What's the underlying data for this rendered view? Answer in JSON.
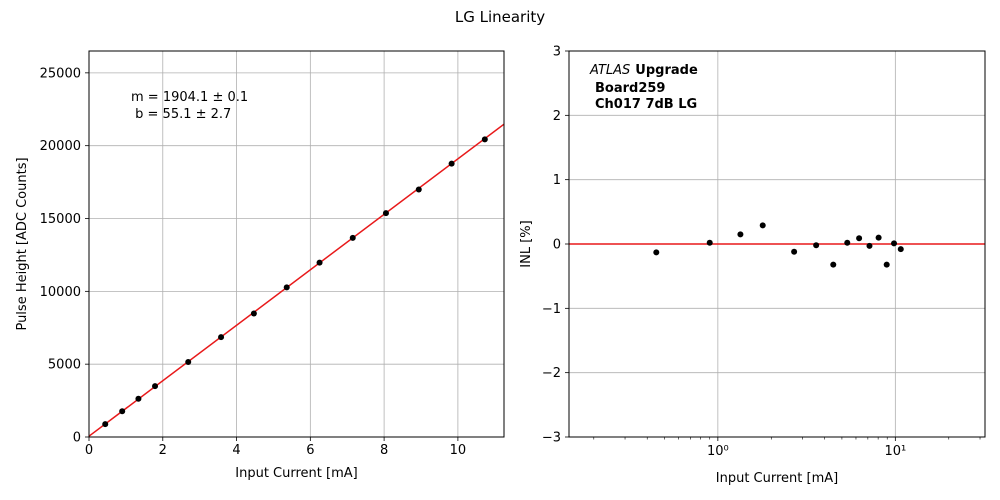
{
  "figure": {
    "title": "LG Linearity"
  },
  "chart_data": [
    {
      "type": "scatter",
      "xlabel": "Input Current [mA]",
      "ylabel": "Pulse Height [ADC Counts]",
      "xlim": [
        0,
        11.25
      ],
      "ylim": [
        0,
        26500
      ],
      "xticks": [
        0,
        2,
        4,
        6,
        8,
        10
      ],
      "yticks": [
        0,
        5000,
        10000,
        15000,
        20000,
        25000
      ],
      "grid": true,
      "annotations": [
        "m = 1904.1 ± 0.1",
        " b = 55.1 ± 2.7"
      ],
      "fit": {
        "slope": 1904.1,
        "intercept": 55.1,
        "color": "#e8191a"
      },
      "points": {
        "x": [
          0.44,
          0.9,
          1.34,
          1.79,
          2.69,
          3.58,
          4.47,
          5.36,
          6.25,
          7.15,
          8.05,
          8.94,
          9.83,
          10.73
        ],
        "y": [
          880,
          1770,
          2630,
          3490,
          5150,
          6860,
          8480,
          10270,
          11970,
          13670,
          15370,
          16990,
          18770,
          20430
        ],
        "color": "#000000"
      }
    },
    {
      "type": "scatter",
      "xlabel": "Input Current [mA]",
      "ylabel": "INL [%]",
      "xscale": "log",
      "xlim": [
        0.145,
        32
      ],
      "ylim": [
        -3,
        3
      ],
      "xticks": [
        1,
        10
      ],
      "xticklabels": [
        "10⁰",
        "10¹"
      ],
      "yticks": [
        -3,
        -2,
        -1,
        0,
        1,
        2,
        3
      ],
      "yticklabels": [
        "−3",
        "−2",
        "−1",
        "0",
        "1",
        "2",
        "3"
      ],
      "grid": true,
      "reference_line": {
        "y": 0,
        "color": "#e8191a"
      },
      "annotations": {
        "experiment_italic": "ATLAS",
        "experiment_bold": "Upgrade",
        "board": "Board259",
        "channel": "Ch017 7dB LG"
      },
      "points": {
        "x": [
          0.45,
          0.9,
          1.34,
          1.79,
          2.69,
          3.58,
          4.47,
          5.36,
          6.25,
          7.15,
          8.05,
          8.94,
          9.83,
          10.73
        ],
        "y": [
          -0.13,
          0.02,
          0.15,
          0.29,
          -0.12,
          -0.02,
          -0.32,
          0.02,
          0.09,
          -0.03,
          0.1,
          -0.32,
          0.01,
          -0.08
        ],
        "color": "#000000"
      }
    }
  ]
}
